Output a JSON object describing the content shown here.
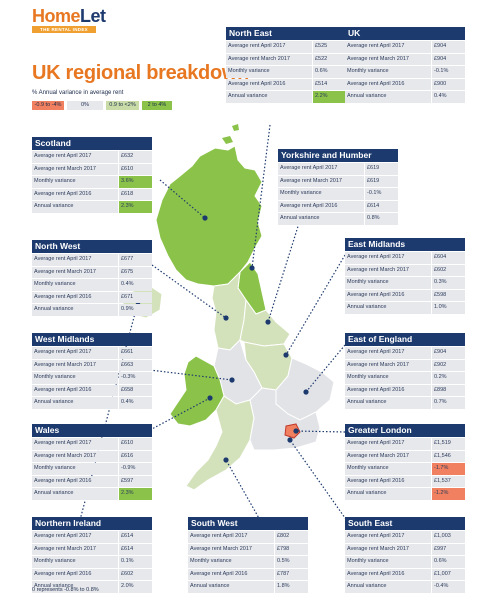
{
  "brand": {
    "name_home": "Home",
    "name_let": "Let",
    "tagline": "THE RENTAL INDEX"
  },
  "title": "UK regional breakdown",
  "legend": {
    "title": "% Annual variance in average rent",
    "items": [
      {
        "label": "-0.9 to -4%",
        "color": "#f08060"
      },
      {
        "label": "0%",
        "color": "#e7e8ec"
      },
      {
        "label": "0.9 to <2%",
        "color": "#c9dca8"
      },
      {
        "label": "2 to 4%",
        "color": "#8bc34a"
      }
    ]
  },
  "footnote": "0 represents -0.8% to 0.8%",
  "row_labels": [
    "Average rent April 2017",
    "Average rent March 2017",
    "Monthly variance",
    "Average rent  April 2016",
    "Annual variance"
  ],
  "regions": {
    "north_east": {
      "name": "North East",
      "values": [
        "£525",
        "£522",
        "0.6%",
        "£514",
        "2.2%"
      ],
      "highlight": [
        "",
        "",
        "",
        "",
        "pos"
      ]
    },
    "uk": {
      "name": "UK",
      "values": [
        "£904",
        "£904",
        "-0.1%",
        "£900",
        "0.4%"
      ],
      "highlight": [
        "",
        "",
        "",
        "",
        ""
      ]
    },
    "scotland": {
      "name": "Scotland",
      "values": [
        "£632",
        "£610",
        "3.6%",
        "£618",
        "2.3%"
      ],
      "highlight": [
        "",
        "",
        "pos",
        "",
        "pos"
      ]
    },
    "yorkshire": {
      "name": "Yorkshire and Humber",
      "values": [
        "£619",
        "£619",
        "-0.1%",
        "£614",
        "0.8%"
      ],
      "highlight": [
        "",
        "",
        "",
        "",
        ""
      ]
    },
    "north_west": {
      "name": "North West",
      "values": [
        "£677",
        "£675",
        "0.4%",
        "£671",
        "0.9%"
      ],
      "highlight": [
        "",
        "",
        "",
        "",
        ""
      ]
    },
    "east_midlands": {
      "name": "East Midlands",
      "values": [
        "£604",
        "£602",
        "0.3%",
        "£598",
        "1.0%"
      ],
      "highlight": [
        "",
        "",
        "",
        "",
        ""
      ]
    },
    "west_midlands": {
      "name": "West Midlands",
      "values": [
        "£661",
        "£663",
        "-0.3%",
        "£658",
        "0.4%"
      ],
      "highlight": [
        "",
        "",
        "",
        "",
        ""
      ]
    },
    "east_england": {
      "name": "East of England",
      "values": [
        "£904",
        "£902",
        "0.2%",
        "£898",
        "0.7%"
      ],
      "highlight": [
        "",
        "",
        "",
        "",
        ""
      ]
    },
    "wales": {
      "name": "Wales",
      "values": [
        "£610",
        "£616",
        "-0.9%",
        "£597",
        "2.3%"
      ],
      "highlight": [
        "",
        "",
        "",
        "",
        "pos"
      ]
    },
    "greater_london": {
      "name": "Greater London",
      "values": [
        "£1,519",
        "£1,546",
        "-1.7%",
        "£1,537",
        "-1.2%"
      ],
      "highlight": [
        "",
        "",
        "neg",
        "",
        "neg"
      ]
    },
    "northern_ireland": {
      "name": "Northern Ireland",
      "values": [
        "£614",
        "£614",
        "0.1%",
        "£602",
        "2.0%"
      ],
      "highlight": [
        "",
        "",
        "",
        "",
        ""
      ]
    },
    "south_west": {
      "name": "South West",
      "values": [
        "£802",
        "£798",
        "0.5%",
        "£787",
        "1.8%"
      ],
      "highlight": [
        "",
        "",
        "",
        "",
        ""
      ]
    },
    "south_east": {
      "name": "South East",
      "values": [
        "£1,003",
        "£997",
        "0.6%",
        "£1,007",
        "-0.4%"
      ],
      "highlight": [
        "",
        "",
        "",
        "",
        ""
      ]
    }
  }
}
